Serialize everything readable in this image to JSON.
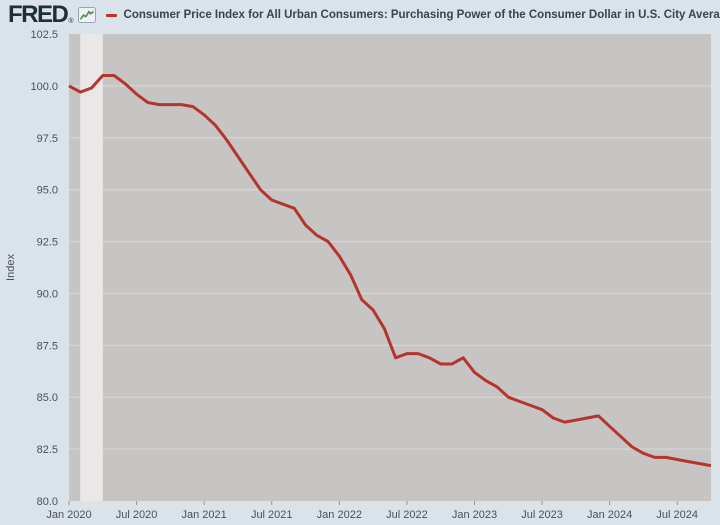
{
  "header": {
    "logo_text": "FRED",
    "logo_registered": "®",
    "logo_icon": "fred-sparkline-logo-icon",
    "legend_marker_icon": "red-line-series-marker",
    "title": "Consumer Price Index for All Urban Consumers: Purchasing Power of the Consumer Dollar in U.S. City Average, Jan"
  },
  "colors": {
    "page_bg": "#dbe3ea",
    "plot_bg": "#c7c5c4",
    "recession_band": "#e9e8e7",
    "gridline": "#d7d5d4",
    "line_red": "#b5352c",
    "axis_text": "#4a5056",
    "title_text": "#36454f",
    "tick_mark": "#8f979e",
    "logo_text": "#1f2f3a",
    "logo_icon_green": "#4c8a4c"
  },
  "chart_data": {
    "type": "line",
    "title": "Consumer Price Index for All Urban Consumers: Purchasing Power of the Consumer Dollar in U.S. City Average, Jan",
    "ylabel": "Index",
    "xlabel": "",
    "ylim": [
      80.0,
      102.5
    ],
    "yticks": [
      102.5,
      100.0,
      97.5,
      95.0,
      92.5,
      90.0,
      87.5,
      85.0,
      82.5,
      80.0
    ],
    "x_start": "Jan 2020",
    "x_end": "Oct 2024",
    "x_frequency": "monthly",
    "xtick_labels": [
      "Jan 2020",
      "Jul 2020",
      "Jan 2021",
      "Jul 2021",
      "Jan 2022",
      "Jul 2022",
      "Jan 2023",
      "Jul 2023",
      "Jan 2024",
      "Jul 2024"
    ],
    "xtick_month_indices": [
      0,
      6,
      12,
      18,
      24,
      30,
      36,
      42,
      48,
      54
    ],
    "grid": true,
    "legend_position": "top",
    "recession_band": {
      "label": "covid-recession-shading",
      "start_month_index": 1,
      "end_month_index": 3
    },
    "series": [
      {
        "name": "Consumer Price Index for All Urban Consumers: Purchasing Power of the Consumer Dollar in U.S. City Average",
        "color": "#b5352c",
        "values": [
          100.0,
          99.7,
          99.9,
          100.5,
          100.5,
          100.1,
          99.6,
          99.2,
          99.1,
          99.1,
          99.1,
          99.0,
          98.6,
          98.1,
          97.4,
          96.6,
          95.8,
          95.0,
          94.5,
          94.3,
          94.1,
          93.3,
          92.8,
          92.5,
          91.8,
          90.9,
          89.7,
          89.2,
          88.3,
          86.9,
          87.1,
          87.1,
          86.9,
          86.6,
          86.6,
          86.9,
          86.2,
          85.8,
          85.5,
          85.0,
          84.8,
          84.6,
          84.4,
          84.0,
          83.8,
          83.9,
          84.0,
          84.1,
          83.6,
          83.1,
          82.6,
          82.3,
          82.1,
          82.1,
          82.0,
          81.9,
          81.8,
          81.7
        ]
      }
    ]
  }
}
